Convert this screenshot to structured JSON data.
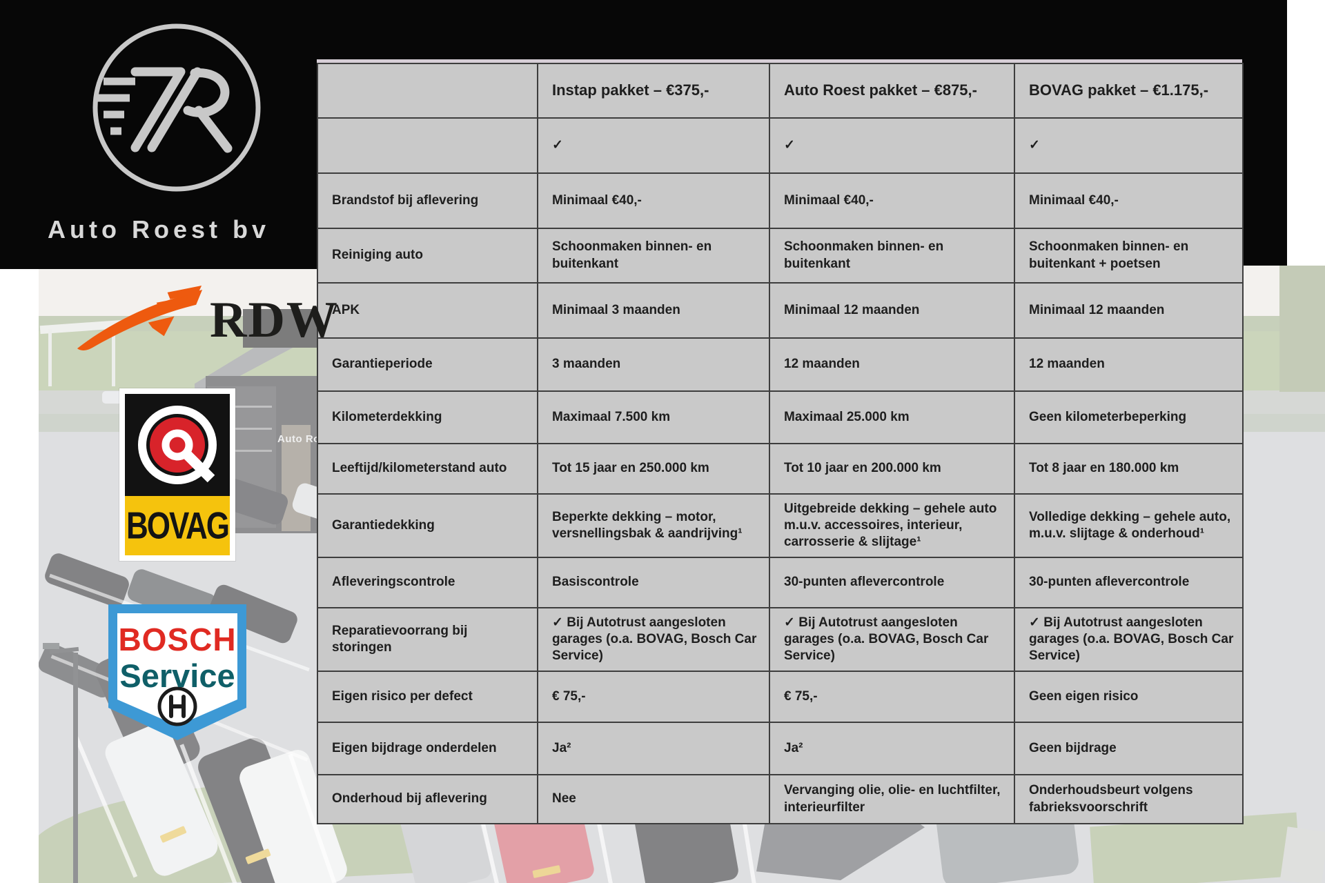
{
  "branding": {
    "dealer_name": "Auto Roest bv",
    "logo_monogram": "7R"
  },
  "partner_logos": {
    "rdw": "RDW",
    "bovag": "BOVAG",
    "bosch_line1": "BOSCH",
    "bosch_line2": "Service"
  },
  "photo": {
    "building_sign": "Auto Ro"
  },
  "colors": {
    "table_background": "#c9c9c9",
    "table_border": "#3d3d3d",
    "panel_black": "#070707",
    "rdw_orange": "#ee5a0f",
    "bovag_red": "#d8232a",
    "bovag_yellow": "#f5c30d",
    "bosch_blue": "#3d99d5",
    "bosch_red": "#e02a22",
    "bosch_teal": "#0f5f68"
  },
  "table": {
    "columns": [
      "",
      "Instap pakket – €375,-",
      "Auto Roest pakket – €875,-",
      "BOVAG pakket – €1.175,-"
    ],
    "rows": [
      {
        "label": "",
        "cells": [
          "✓",
          "✓",
          "✓"
        ]
      },
      {
        "label": "Brandstof bij aflevering",
        "cells": [
          "Minimaal €40,-",
          "Minimaal €40,-",
          "Minimaal €40,-"
        ]
      },
      {
        "label": "Reiniging auto",
        "cells": [
          "Schoonmaken binnen- en buitenkant",
          "Schoonmaken binnen- en buitenkant",
          "Schoonmaken binnen- en buitenkant + poetsen"
        ]
      },
      {
        "label": "APK",
        "cells": [
          "Minimaal 3 maanden",
          "Minimaal 12 maanden",
          "Minimaal 12 maanden"
        ]
      },
      {
        "label": "Garantieperiode",
        "cells": [
          "3 maanden",
          "12 maanden",
          "12 maanden"
        ]
      },
      {
        "label": "Kilometerdekking",
        "cells": [
          "Maximaal 7.500 km",
          "Maximaal 25.000 km",
          "Geen kilometerbeperking"
        ]
      },
      {
        "label": "Leeftijd/kilometerstand auto",
        "cells": [
          "Tot 15 jaar en 250.000 km",
          "Tot 10 jaar en 200.000 km",
          "Tot 8 jaar en 180.000 km"
        ]
      },
      {
        "label": "Garantiedekking",
        "cells": [
          "Beperkte dekking – motor, versnellingsbak & aandrijving¹",
          "Uitgebreide dekking – gehele auto m.u.v. accessoires, interieur, carrosserie & slijtage¹",
          "Volledige dekking – gehele auto, m.u.v. slijtage & onderhoud¹"
        ]
      },
      {
        "label": "Afleveringscontrole",
        "cells": [
          "Basiscontrole",
          "30-punten aflevercontrole",
          "30-punten aflevercontrole"
        ]
      },
      {
        "label": "Reparatievoorrang bij storingen",
        "cells": [
          "✓ Bij Autotrust aangesloten garages (o.a. BOVAG, Bosch Car Service)",
          "✓ Bij Autotrust aangesloten garages (o.a. BOVAG, Bosch Car Service)",
          "✓ Bij Autotrust aangesloten garages (o.a. BOVAG, Bosch Car Service)"
        ]
      },
      {
        "label": "Eigen risico per defect",
        "cells": [
          "€ 75,-",
          "€ 75,-",
          "Geen eigen risico"
        ]
      },
      {
        "label": "Eigen bijdrage onderdelen",
        "cells": [
          "Ja²",
          "Ja²",
          "Geen bijdrage"
        ]
      },
      {
        "label": "Onderhoud bij aflevering",
        "cells": [
          "Nee",
          "Vervanging olie, olie- en luchtfilter, interieurfilter",
          "Onderhoudsbeurt volgens fabrieksvoorschrift"
        ]
      }
    ]
  }
}
